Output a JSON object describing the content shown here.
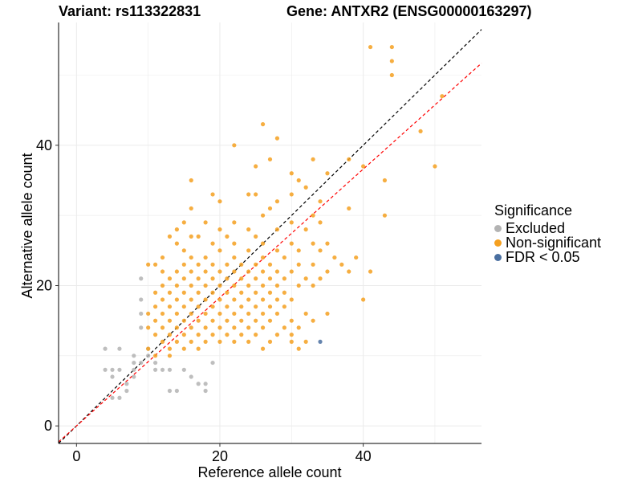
{
  "title_left": "Variant: rs113322831",
  "title_right": "Gene: ANTXR2 (ENSG00000163297)",
  "legend": {
    "title": "Significance",
    "items": [
      {
        "label": "Excluded",
        "color": "#b3b3b3"
      },
      {
        "label": "Non-significant",
        "color": "#f5a020"
      },
      {
        "label": "FDR < 0.05",
        "color": "#4a6fa0"
      }
    ]
  },
  "chart_data": {
    "type": "scatter",
    "xlabel": "Reference allele count",
    "ylabel": "Alternative allele count",
    "xlim": [
      -2.5,
      56.5
    ],
    "ylim": [
      -2.5,
      57.5
    ],
    "xticks": [
      0,
      20,
      40
    ],
    "yticks": [
      0,
      20,
      40
    ],
    "grid": true,
    "reference_lines": [
      {
        "name": "y = x",
        "color": "#000000",
        "style": "dashed",
        "slope": 1,
        "intercept": 0
      },
      {
        "name": "fit",
        "color": "#ff0000",
        "style": "dashed",
        "slope": 0.915,
        "intercept": 0
      }
    ],
    "series": [
      {
        "color": "#b3b3b3",
        "points": [
          [
            4,
            11
          ],
          [
            4,
            8
          ],
          [
            5,
            8
          ],
          [
            5,
            7
          ],
          [
            6,
            11
          ],
          [
            6,
            8
          ],
          [
            5,
            4
          ],
          [
            6,
            4
          ],
          [
            7,
            6
          ],
          [
            7,
            5
          ],
          [
            8,
            10
          ],
          [
            8,
            8
          ],
          [
            8,
            7
          ],
          [
            9,
            21
          ],
          [
            9,
            18
          ],
          [
            9,
            16
          ],
          [
            9,
            14
          ],
          [
            10,
            11
          ],
          [
            10,
            10
          ],
          [
            9,
            9
          ],
          [
            8,
            9
          ],
          [
            11,
            9
          ],
          [
            11,
            8
          ],
          [
            12,
            8
          ],
          [
            13,
            8
          ],
          [
            13,
            5
          ],
          [
            14,
            5
          ],
          [
            15,
            8
          ],
          [
            16,
            7
          ],
          [
            17,
            6
          ],
          [
            18,
            6
          ],
          [
            18,
            5
          ],
          [
            19,
            9
          ]
        ]
      },
      {
        "color": "#f5a020",
        "points": [
          [
            41,
            54
          ],
          [
            44,
            54
          ],
          [
            44,
            52
          ],
          [
            44,
            50
          ],
          [
            51,
            47
          ],
          [
            48,
            42
          ],
          [
            26,
            43
          ],
          [
            22,
            40
          ],
          [
            28,
            41
          ],
          [
            27,
            38
          ],
          [
            33,
            38
          ],
          [
            38,
            38
          ],
          [
            25,
            37
          ],
          [
            40,
            37
          ],
          [
            50,
            37
          ],
          [
            30,
            36
          ],
          [
            35,
            36
          ],
          [
            31,
            35
          ],
          [
            43,
            35
          ],
          [
            16,
            35
          ],
          [
            32,
            34
          ],
          [
            19,
            33
          ],
          [
            24,
            33
          ],
          [
            25,
            33
          ],
          [
            30,
            33
          ],
          [
            20,
            32
          ],
          [
            34,
            32
          ],
          [
            28,
            32
          ],
          [
            16,
            31
          ],
          [
            27,
            31
          ],
          [
            26,
            30
          ],
          [
            33,
            30
          ],
          [
            38,
            31
          ],
          [
            43,
            30
          ],
          [
            15,
            29
          ],
          [
            18,
            29
          ],
          [
            22,
            29
          ],
          [
            30,
            29
          ],
          [
            34,
            29
          ],
          [
            14,
            28
          ],
          [
            20,
            28
          ],
          [
            24,
            28
          ],
          [
            28,
            28
          ],
          [
            32,
            28
          ],
          [
            16,
            27
          ],
          [
            17,
            27
          ],
          [
            21,
            27
          ],
          [
            25,
            27
          ],
          [
            13,
            27
          ],
          [
            33,
            26
          ],
          [
            35,
            26
          ],
          [
            14,
            26
          ],
          [
            19,
            26
          ],
          [
            22,
            26
          ],
          [
            26,
            26
          ],
          [
            30,
            26
          ],
          [
            15,
            25
          ],
          [
            20,
            25
          ],
          [
            24,
            25
          ],
          [
            28,
            25
          ],
          [
            31,
            25
          ],
          [
            34,
            25
          ],
          [
            12,
            24
          ],
          [
            16,
            24
          ],
          [
            18,
            24
          ],
          [
            22,
            24
          ],
          [
            26,
            24
          ],
          [
            29,
            24
          ],
          [
            36,
            24
          ],
          [
            39,
            24
          ],
          [
            10,
            23
          ],
          [
            11,
            23
          ],
          [
            15,
            23
          ],
          [
            17,
            23
          ],
          [
            19,
            23
          ],
          [
            21,
            23
          ],
          [
            23,
            23
          ],
          [
            25,
            23
          ],
          [
            27,
            23
          ],
          [
            31,
            23
          ],
          [
            33,
            23
          ],
          [
            37,
            23
          ],
          [
            12,
            22
          ],
          [
            14,
            22
          ],
          [
            16,
            22
          ],
          [
            18,
            22
          ],
          [
            20,
            22
          ],
          [
            22,
            22
          ],
          [
            24,
            22
          ],
          [
            26,
            22
          ],
          [
            28,
            22
          ],
          [
            30,
            22
          ],
          [
            35,
            22
          ],
          [
            38,
            22
          ],
          [
            41,
            22
          ],
          [
            13,
            21
          ],
          [
            15,
            21
          ],
          [
            17,
            21
          ],
          [
            19,
            21
          ],
          [
            21,
            21
          ],
          [
            23,
            21
          ],
          [
            25,
            21
          ],
          [
            27,
            21
          ],
          [
            29,
            21
          ],
          [
            32,
            21
          ],
          [
            34,
            21
          ],
          [
            12,
            20
          ],
          [
            14,
            20
          ],
          [
            16,
            20
          ],
          [
            18,
            20
          ],
          [
            20,
            20
          ],
          [
            22,
            20
          ],
          [
            24,
            20
          ],
          [
            26,
            20
          ],
          [
            28,
            20
          ],
          [
            31,
            20
          ],
          [
            33,
            20
          ],
          [
            11,
            19
          ],
          [
            13,
            19
          ],
          [
            15,
            19
          ],
          [
            17,
            19
          ],
          [
            19,
            19
          ],
          [
            21,
            19
          ],
          [
            23,
            19
          ],
          [
            25,
            19
          ],
          [
            27,
            19
          ],
          [
            29,
            19
          ],
          [
            12,
            18
          ],
          [
            14,
            18
          ],
          [
            16,
            18
          ],
          [
            18,
            18
          ],
          [
            20,
            18
          ],
          [
            22,
            18
          ],
          [
            24,
            18
          ],
          [
            26,
            18
          ],
          [
            28,
            18
          ],
          [
            30,
            18
          ],
          [
            40,
            18
          ],
          [
            11,
            17
          ],
          [
            13,
            17
          ],
          [
            15,
            17
          ],
          [
            17,
            17
          ],
          [
            19,
            17
          ],
          [
            21,
            17
          ],
          [
            23,
            17
          ],
          [
            25,
            17
          ],
          [
            27,
            17
          ],
          [
            29,
            17
          ],
          [
            10,
            16
          ],
          [
            12,
            16
          ],
          [
            14,
            16
          ],
          [
            16,
            16
          ],
          [
            18,
            16
          ],
          [
            20,
            16
          ],
          [
            22,
            16
          ],
          [
            24,
            16
          ],
          [
            26,
            16
          ],
          [
            28,
            16
          ],
          [
            32,
            16
          ],
          [
            35,
            16
          ],
          [
            11,
            15
          ],
          [
            13,
            15
          ],
          [
            15,
            15
          ],
          [
            17,
            15
          ],
          [
            19,
            15
          ],
          [
            21,
            15
          ],
          [
            23,
            15
          ],
          [
            25,
            15
          ],
          [
            27,
            15
          ],
          [
            30,
            15
          ],
          [
            33,
            15
          ],
          [
            10,
            14
          ],
          [
            12,
            14
          ],
          [
            14,
            14
          ],
          [
            16,
            14
          ],
          [
            18,
            14
          ],
          [
            20,
            14
          ],
          [
            22,
            14
          ],
          [
            24,
            14
          ],
          [
            26,
            14
          ],
          [
            29,
            14
          ],
          [
            31,
            14
          ],
          [
            11,
            13
          ],
          [
            13,
            13
          ],
          [
            15,
            13
          ],
          [
            17,
            13
          ],
          [
            19,
            13
          ],
          [
            21,
            13
          ],
          [
            23,
            13
          ],
          [
            25,
            13
          ],
          [
            28,
            13
          ],
          [
            30,
            13
          ],
          [
            12,
            12
          ],
          [
            14,
            12
          ],
          [
            16,
            12
          ],
          [
            18,
            12
          ],
          [
            20,
            12
          ],
          [
            22,
            12
          ],
          [
            24,
            12
          ],
          [
            27,
            12
          ],
          [
            30,
            12
          ],
          [
            32,
            12
          ],
          [
            10,
            11
          ],
          [
            13,
            11
          ],
          [
            15,
            11
          ],
          [
            17,
            11
          ],
          [
            26,
            11
          ],
          [
            31,
            11
          ],
          [
            11,
            10
          ],
          [
            13,
            10
          ]
        ]
      },
      {
        "color": "#4a6fa0",
        "points": [
          [
            34,
            12
          ]
        ]
      }
    ]
  }
}
